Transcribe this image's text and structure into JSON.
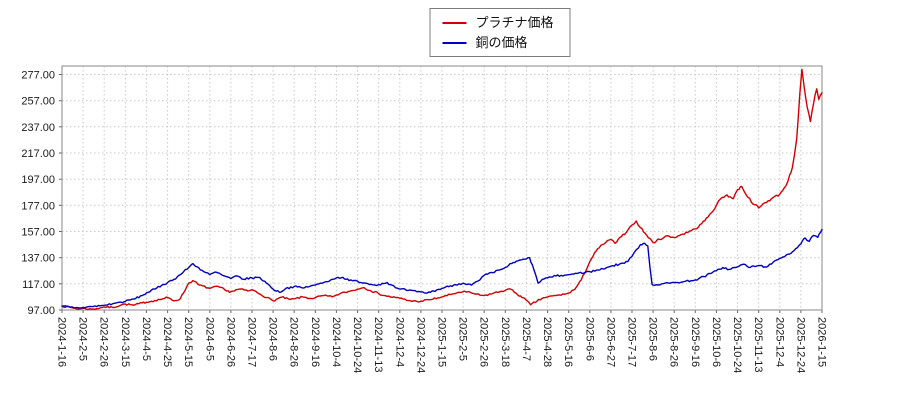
{
  "chart_data": {
    "type": "line",
    "title": "",
    "grid": "dotted",
    "legend_position": "top-center",
    "legend": [
      {
        "name": "プラチナ価格",
        "color": "#d10000"
      },
      {
        "name": "銅の価格",
        "color": "#0000bb"
      }
    ],
    "y_ticks": [
      97,
      117,
      137,
      157,
      177,
      197,
      217,
      237,
      257,
      277
    ],
    "ylim": [
      97,
      283.5
    ],
    "x_tick_labels": [
      "2024-1-16",
      "2024-2-5",
      "2024-2-26",
      "2024-3-15",
      "2024-4-5",
      "2024-4-25",
      "2024-5-15",
      "2024-6-5",
      "2024-6-26",
      "2024-7-17",
      "2024-8-6",
      "2024-8-26",
      "2024-9-16",
      "2024-10-4",
      "2024-10-24",
      "2024-11-13",
      "2024-12-4",
      "2024-12-24",
      "2025-1-15",
      "2025-2-5",
      "2025-2-26",
      "2025-3-18",
      "2025-4-7",
      "2025-4-28",
      "2025-5-16",
      "2025-6-6",
      "2025-6-27",
      "2025-7-17",
      "2025-8-6",
      "2025-8-26",
      "2025-9-16",
      "2025-10-6",
      "2025-10-24",
      "2025-11-13",
      "2025-12-4",
      "2025-12-24",
      "2026-1-15"
    ],
    "series": [
      {
        "name": "プラチナ価格",
        "color": "#d10000",
        "points": [
          [
            0,
            100
          ],
          [
            0.4,
            99
          ],
          [
            0.8,
            97.8
          ],
          [
            1,
            98.2
          ],
          [
            1.4,
            97.6
          ],
          [
            1.8,
            98.5
          ],
          [
            2,
            99.3
          ],
          [
            2.4,
            99
          ],
          [
            2.8,
            100.8
          ],
          [
            3,
            101.5
          ],
          [
            3.4,
            100.6
          ],
          [
            3.8,
            102.4
          ],
          [
            4,
            103
          ],
          [
            4.4,
            104.3
          ],
          [
            4.8,
            105.6
          ],
          [
            5,
            106.5
          ],
          [
            5.3,
            104
          ],
          [
            5.6,
            105.5
          ],
          [
            6,
            117.5
          ],
          [
            6.2,
            119.5
          ],
          [
            6.5,
            116
          ],
          [
            7,
            113.5
          ],
          [
            7.4,
            115
          ],
          [
            7.8,
            111.5
          ],
          [
            8,
            111
          ],
          [
            8.4,
            113
          ],
          [
            8.8,
            111.5
          ],
          [
            9,
            112.5
          ],
          [
            9.4,
            109
          ],
          [
            9.7,
            106.5
          ],
          [
            10,
            104
          ],
          [
            10.4,
            106.8
          ],
          [
            10.8,
            105
          ],
          [
            11,
            105.5
          ],
          [
            11.4,
            107
          ],
          [
            11.8,
            105.8
          ],
          [
            12,
            106.5
          ],
          [
            12.4,
            108
          ],
          [
            12.8,
            107
          ],
          [
            13,
            108.5
          ],
          [
            13.4,
            110.5
          ],
          [
            13.8,
            112
          ],
          [
            14,
            113
          ],
          [
            14.3,
            114.2
          ],
          [
            14.6,
            112
          ],
          [
            15,
            109.5
          ],
          [
            15.4,
            107.5
          ],
          [
            15.8,
            106.5
          ],
          [
            16,
            106
          ],
          [
            16.4,
            104.2
          ],
          [
            16.8,
            103.6
          ],
          [
            17,
            103.8
          ],
          [
            17.4,
            104.8
          ],
          [
            17.8,
            106.2
          ],
          [
            18,
            107
          ],
          [
            18.4,
            108.8
          ],
          [
            18.8,
            110.5
          ],
          [
            19,
            111
          ],
          [
            19.4,
            110
          ],
          [
            19.8,
            108.3
          ],
          [
            20,
            108
          ],
          [
            20.4,
            109.6
          ],
          [
            20.8,
            111.4
          ],
          [
            21,
            112
          ],
          [
            21.2,
            113.2
          ],
          [
            21.5,
            110
          ],
          [
            21.8,
            106.5
          ],
          [
            22,
            104.5
          ],
          [
            22.2,
            101
          ],
          [
            22.5,
            103.8
          ],
          [
            22.8,
            106.3
          ],
          [
            23,
            107
          ],
          [
            23.4,
            108
          ],
          [
            23.8,
            109
          ],
          [
            24,
            110
          ],
          [
            24.3,
            113
          ],
          [
            24.6,
            120
          ],
          [
            25,
            134
          ],
          [
            25.3,
            142
          ],
          [
            25.6,
            147
          ],
          [
            26,
            151
          ],
          [
            26.2,
            148
          ],
          [
            26.5,
            153
          ],
          [
            26.8,
            158
          ],
          [
            27,
            162
          ],
          [
            27.2,
            165
          ],
          [
            27.4,
            160
          ],
          [
            27.7,
            154
          ],
          [
            28,
            148.5
          ],
          [
            28.3,
            151
          ],
          [
            28.6,
            153.5
          ],
          [
            29,
            152.5
          ],
          [
            29.4,
            155
          ],
          [
            29.8,
            157.5
          ],
          [
            30,
            159
          ],
          [
            30.3,
            163
          ],
          [
            30.6,
            168
          ],
          [
            31,
            177
          ],
          [
            31.2,
            182
          ],
          [
            31.5,
            185
          ],
          [
            31.8,
            182
          ],
          [
            32,
            189
          ],
          [
            32.2,
            191.5
          ],
          [
            32.5,
            183
          ],
          [
            32.8,
            177.5
          ],
          [
            33,
            175
          ],
          [
            33.3,
            179
          ],
          [
            33.6,
            182
          ],
          [
            34,
            185.5
          ],
          [
            34.2,
            190
          ],
          [
            34.4,
            196
          ],
          [
            34.6,
            206
          ],
          [
            34.8,
            228
          ],
          [
            34.95,
            262
          ],
          [
            35.05,
            281
          ],
          [
            35.15,
            268
          ],
          [
            35.3,
            252
          ],
          [
            35.45,
            241
          ],
          [
            35.6,
            255
          ],
          [
            35.75,
            266
          ],
          [
            35.85,
            258
          ],
          [
            36,
            263
          ]
        ]
      },
      {
        "name": "銅の価格",
        "color": "#0000bb",
        "points": [
          [
            0,
            100
          ],
          [
            0.4,
            99.2
          ],
          [
            0.8,
            98.6
          ],
          [
            1,
            99
          ],
          [
            1.4,
            99.6
          ],
          [
            1.8,
            100.2
          ],
          [
            2,
            100.6
          ],
          [
            2.4,
            101.8
          ],
          [
            2.8,
            103
          ],
          [
            3,
            103.6
          ],
          [
            3.4,
            105.4
          ],
          [
            3.8,
            108
          ],
          [
            4,
            110
          ],
          [
            4.4,
            113
          ],
          [
            4.8,
            116.5
          ],
          [
            5,
            118
          ],
          [
            5.3,
            120.5
          ],
          [
            5.6,
            124
          ],
          [
            6,
            129.5
          ],
          [
            6.2,
            132.5
          ],
          [
            6.4,
            130
          ],
          [
            6.7,
            126.5
          ],
          [
            7,
            124
          ],
          [
            7.3,
            126
          ],
          [
            7.6,
            123.5
          ],
          [
            8,
            121
          ],
          [
            8.3,
            123
          ],
          [
            8.6,
            120.5
          ],
          [
            9,
            121.5
          ],
          [
            9.3,
            122
          ],
          [
            9.6,
            119
          ],
          [
            10,
            113
          ],
          [
            10.3,
            110.5
          ],
          [
            10.6,
            113.5
          ],
          [
            11,
            115
          ],
          [
            11.4,
            113.8
          ],
          [
            11.8,
            115.5
          ],
          [
            12,
            116
          ],
          [
            12.4,
            118
          ],
          [
            12.8,
            120.5
          ],
          [
            13,
            121.5
          ],
          [
            13.3,
            122
          ],
          [
            13.6,
            119.5
          ],
          [
            14,
            119
          ],
          [
            14.4,
            117.5
          ],
          [
            14.8,
            116.2
          ],
          [
            15,
            116.5
          ],
          [
            15.4,
            118
          ],
          [
            15.8,
            114
          ],
          [
            16,
            113
          ],
          [
            16.4,
            112
          ],
          [
            16.8,
            111
          ],
          [
            17,
            110.8
          ],
          [
            17.3,
            110
          ],
          [
            17.6,
            111.5
          ],
          [
            18,
            113.5
          ],
          [
            18.4,
            115.5
          ],
          [
            18.8,
            117
          ],
          [
            19,
            117.5
          ],
          [
            19.4,
            116
          ],
          [
            19.8,
            120
          ],
          [
            20,
            123.5
          ],
          [
            20.4,
            125.5
          ],
          [
            20.8,
            128
          ],
          [
            21,
            129.5
          ],
          [
            21.3,
            132.5
          ],
          [
            21.6,
            134.5
          ],
          [
            22,
            136
          ],
          [
            22.15,
            137
          ],
          [
            22.35,
            128
          ],
          [
            22.55,
            117.5
          ],
          [
            22.75,
            120.5
          ],
          [
            23,
            121.5
          ],
          [
            23.4,
            123
          ],
          [
            23.8,
            123.5
          ],
          [
            24,
            124
          ],
          [
            24.4,
            125
          ],
          [
            24.8,
            125.8
          ],
          [
            25,
            126.3
          ],
          [
            25.4,
            127.5
          ],
          [
            25.8,
            129.5
          ],
          [
            26,
            130.5
          ],
          [
            26.4,
            132
          ],
          [
            26.8,
            134
          ],
          [
            27,
            138
          ],
          [
            27.2,
            143
          ],
          [
            27.4,
            147
          ],
          [
            27.6,
            148
          ],
          [
            27.75,
            146
          ],
          [
            27.85,
            130
          ],
          [
            27.95,
            116.5
          ],
          [
            28,
            116
          ],
          [
            28.4,
            117
          ],
          [
            28.8,
            117.5
          ],
          [
            29,
            118
          ],
          [
            29.4,
            118.5
          ],
          [
            29.8,
            119.5
          ],
          [
            30,
            120
          ],
          [
            30.4,
            122.5
          ],
          [
            30.8,
            125.5
          ],
          [
            31,
            127
          ],
          [
            31.3,
            129.5
          ],
          [
            31.6,
            128
          ],
          [
            32,
            130
          ],
          [
            32.3,
            132
          ],
          [
            32.6,
            129.5
          ],
          [
            33,
            131
          ],
          [
            33.3,
            130
          ],
          [
            33.6,
            132
          ],
          [
            34,
            136.5
          ],
          [
            34.3,
            139
          ],
          [
            34.6,
            141.5
          ],
          [
            35,
            147.5
          ],
          [
            35.2,
            152
          ],
          [
            35.4,
            149.5
          ],
          [
            35.6,
            154
          ],
          [
            35.8,
            152.5
          ],
          [
            36,
            158.5
          ]
        ]
      }
    ]
  }
}
